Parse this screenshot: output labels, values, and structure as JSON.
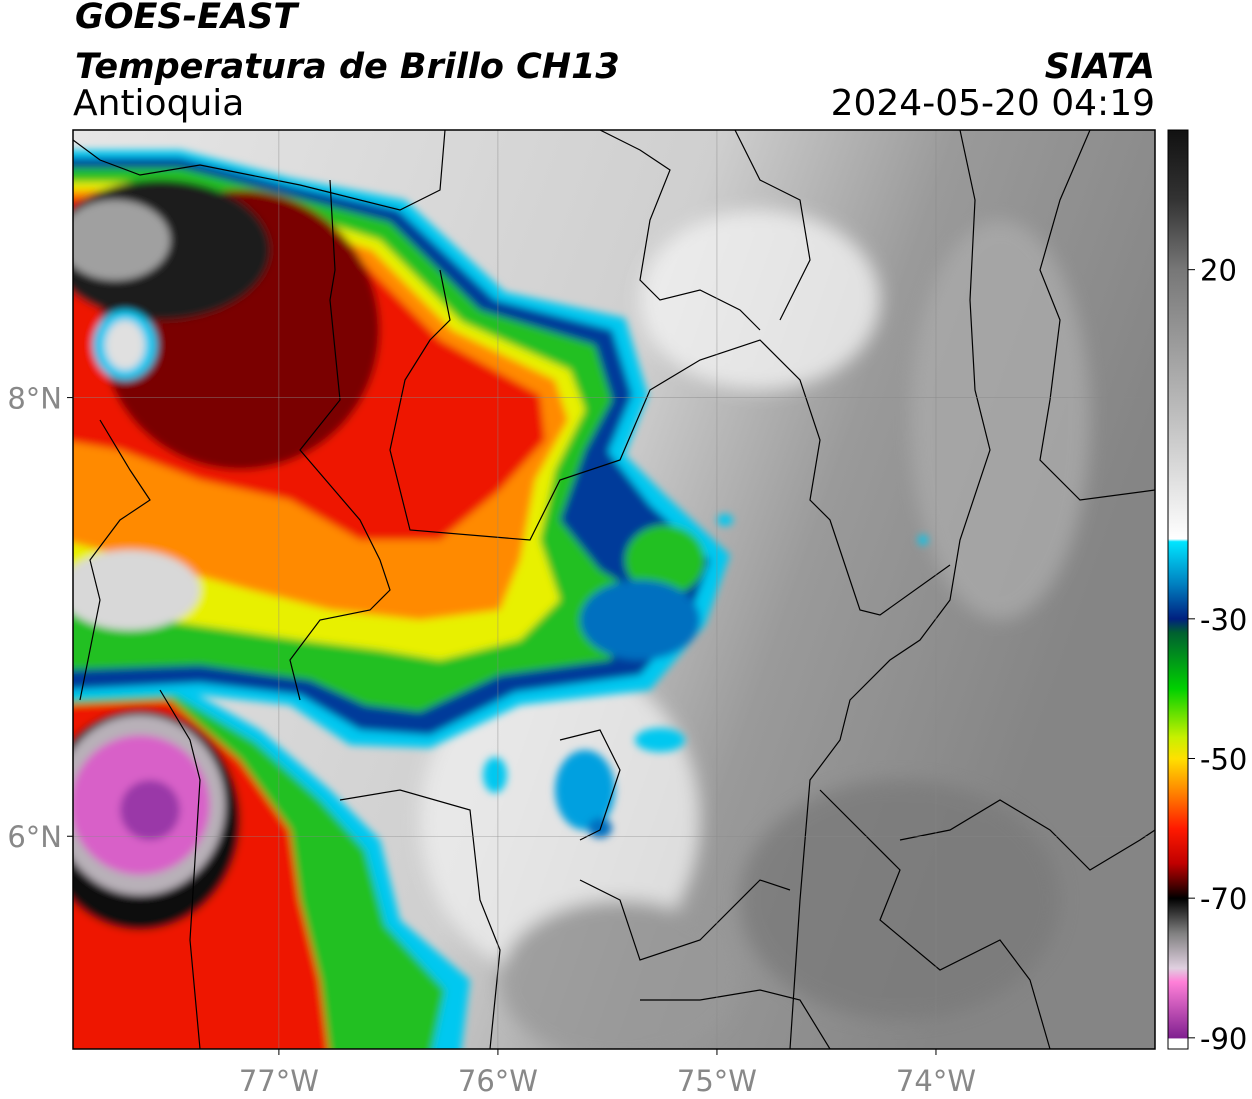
{
  "header": {
    "satellite": "GOES-EAST",
    "product": "Temperatura de Brillo CH13",
    "region": "Antioquia",
    "source": "SIATA",
    "datetime": "2024-05-20 04:19"
  },
  "map": {
    "xlim": [
      -77.94,
      -73.0
    ],
    "ylim": [
      5.03,
      9.22
    ],
    "xticks": [
      {
        "value": -77,
        "label": "77°W"
      },
      {
        "value": -76,
        "label": "76°W"
      },
      {
        "value": -75,
        "label": "75°W"
      },
      {
        "value": -74,
        "label": "74°W"
      }
    ],
    "yticks": [
      {
        "value": 6,
        "label": "6°N"
      },
      {
        "value": 8,
        "label": "8°N"
      }
    ],
    "grid": true
  },
  "colorbar": {
    "clim": [
      -91.6,
      40
    ],
    "ticks": [
      -90,
      -70,
      -50,
      -30,
      20
    ]
  }
}
